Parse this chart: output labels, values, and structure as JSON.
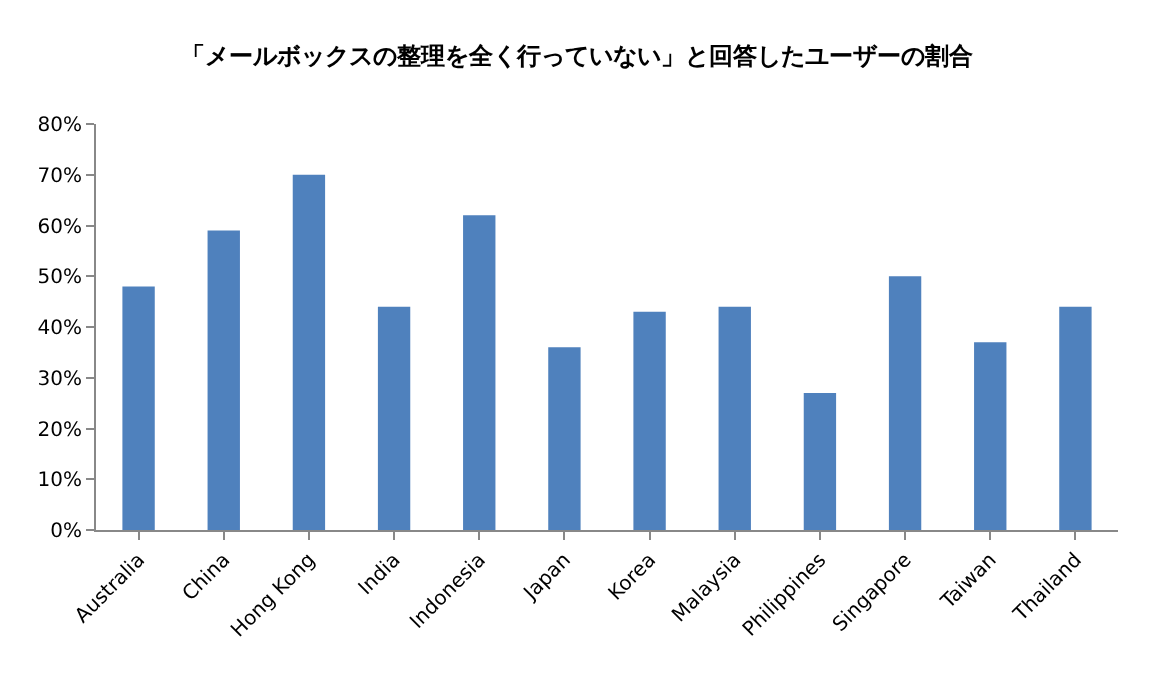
{
  "chart_data": {
    "type": "bar",
    "title": "「メールボックスの整理を全く行っていない」と回答したユーザーの割合",
    "categories": [
      "Australia",
      "China",
      "Hong Kong",
      "India",
      "Indonesia",
      "Japan",
      "Korea",
      "Malaysia",
      "Philippines",
      "Singapore",
      "Taiwan",
      "Thailand"
    ],
    "values": [
      48,
      59,
      70,
      44,
      62,
      36,
      43,
      44,
      27,
      50,
      37,
      44
    ],
    "color": "#4f81bd",
    "ylim": [
      0,
      80
    ],
    "yticks": [
      {
        "value": 0,
        "label": "0%"
      },
      {
        "value": 10,
        "label": "10%"
      },
      {
        "value": 20,
        "label": "20%"
      },
      {
        "value": 30,
        "label": "30%"
      },
      {
        "value": 40,
        "label": "40%"
      },
      {
        "value": 50,
        "label": "50%"
      },
      {
        "value": 60,
        "label": "60%"
      },
      {
        "value": 70,
        "label": "70%"
      },
      {
        "value": 80,
        "label": "80%"
      }
    ],
    "data_labels": false
  }
}
